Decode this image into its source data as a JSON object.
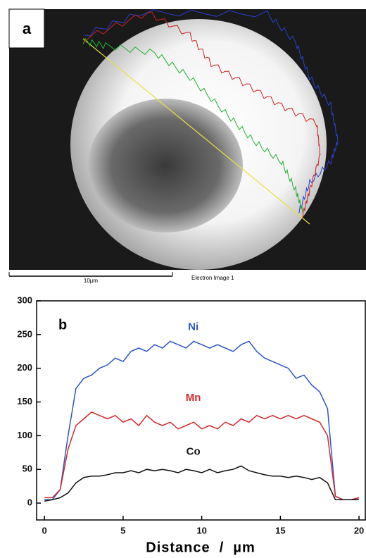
{
  "image_panel": {
    "label": "a",
    "scale_bar": "10µm",
    "caption": "Electron Image 1"
  },
  "chart_data": {
    "type": "line",
    "label": "b",
    "x_label": "Distance  /  µm",
    "x": [
      0,
      0.5,
      1,
      1.5,
      2,
      2.5,
      3,
      3.5,
      4,
      4.5,
      5,
      5.5,
      6,
      6.5,
      7,
      7.5,
      8,
      8.5,
      9,
      9.5,
      10,
      10.5,
      11,
      11.5,
      12,
      12.5,
      13,
      13.5,
      14,
      14.5,
      15,
      15.5,
      16,
      16.5,
      17,
      17.5,
      18,
      18.5,
      19,
      19.5,
      20
    ],
    "series": [
      {
        "name": "Ni",
        "color": "#2e55c8",
        "values": [
          5,
          5,
          20,
          100,
          170,
          185,
          190,
          200,
          205,
          215,
          210,
          225,
          230,
          225,
          235,
          230,
          240,
          235,
          230,
          240,
          235,
          230,
          235,
          230,
          225,
          235,
          240,
          225,
          215,
          210,
          205,
          200,
          185,
          190,
          175,
          165,
          140,
          10,
          5,
          5,
          8
        ]
      },
      {
        "name": "Mn",
        "color": "#d42a2a",
        "values": [
          8,
          8,
          20,
          80,
          115,
          125,
          135,
          130,
          125,
          130,
          120,
          125,
          115,
          130,
          120,
          115,
          120,
          110,
          115,
          120,
          110,
          115,
          110,
          120,
          115,
          125,
          120,
          130,
          125,
          130,
          125,
          130,
          125,
          130,
          125,
          120,
          100,
          10,
          5,
          5,
          8
        ]
      },
      {
        "name": "Co",
        "color": "#111111",
        "values": [
          3,
          5,
          8,
          15,
          30,
          38,
          40,
          40,
          42,
          45,
          45,
          48,
          45,
          50,
          48,
          50,
          48,
          45,
          50,
          48,
          45,
          50,
          45,
          48,
          50,
          55,
          48,
          45,
          42,
          40,
          40,
          38,
          40,
          38,
          35,
          38,
          30,
          5,
          5,
          5,
          5
        ]
      }
    ],
    "xlim": [
      -0.5,
      20.4
    ],
    "ylim": [
      -25,
      300
    ],
    "xticks": [
      0,
      5,
      10,
      15,
      20
    ],
    "yticks": [
      0,
      50,
      100,
      150,
      200,
      250,
      300
    ]
  }
}
